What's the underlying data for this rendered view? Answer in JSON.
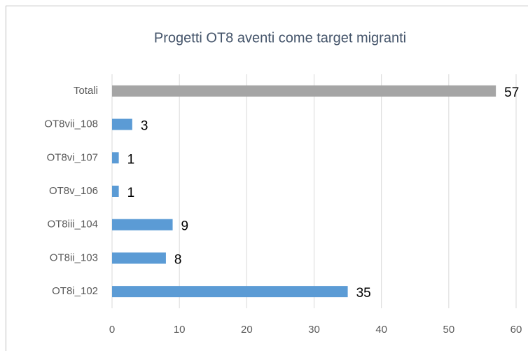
{
  "chart_data": {
    "type": "bar",
    "orientation": "horizontal",
    "title": "Progetti OT8 aventi come target migranti",
    "categories": [
      "Totali",
      "OT8vii_108",
      "OT8vi_107",
      "OT8v_106",
      "OT8iii_104",
      "OT8ii_103",
      "OT8i_102"
    ],
    "values": [
      57,
      3,
      1,
      1,
      9,
      8,
      35
    ],
    "colors": [
      "#a5a5a5",
      "#5b9bd5",
      "#5b9bd5",
      "#5b9bd5",
      "#5b9bd5",
      "#5b9bd5",
      "#5b9bd5"
    ],
    "xlim": [
      0,
      60
    ],
    "xticks": [
      0,
      10,
      20,
      30,
      40,
      50,
      60
    ],
    "grid": true
  }
}
